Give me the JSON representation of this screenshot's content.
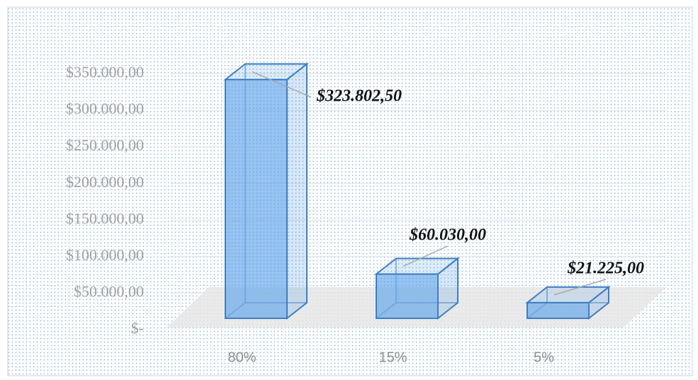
{
  "chart_data": {
    "type": "bar",
    "categories": [
      "80%",
      "15%",
      "5%"
    ],
    "values": [
      323802.5,
      60030,
      21225
    ],
    "value_labels": [
      "$323.802,50",
      "$60.030,00",
      "$21.225,00"
    ],
    "color": "#5fa3e8",
    "ylim": [
      0,
      350000
    ],
    "yticks": [
      {
        "value": 0,
        "label": "$-"
      },
      {
        "value": 50000,
        "label": "$50.000,00"
      },
      {
        "value": 100000,
        "label": "$100.000,00"
      },
      {
        "value": 150000,
        "label": "$150.000,00"
      },
      {
        "value": 200000,
        "label": "$200.000,00"
      },
      {
        "value": 250000,
        "label": "$250.000,00"
      },
      {
        "value": 300000,
        "label": "$300.000,00"
      },
      {
        "value": 350000,
        "label": "$350.000,00"
      }
    ],
    "grid": true
  }
}
